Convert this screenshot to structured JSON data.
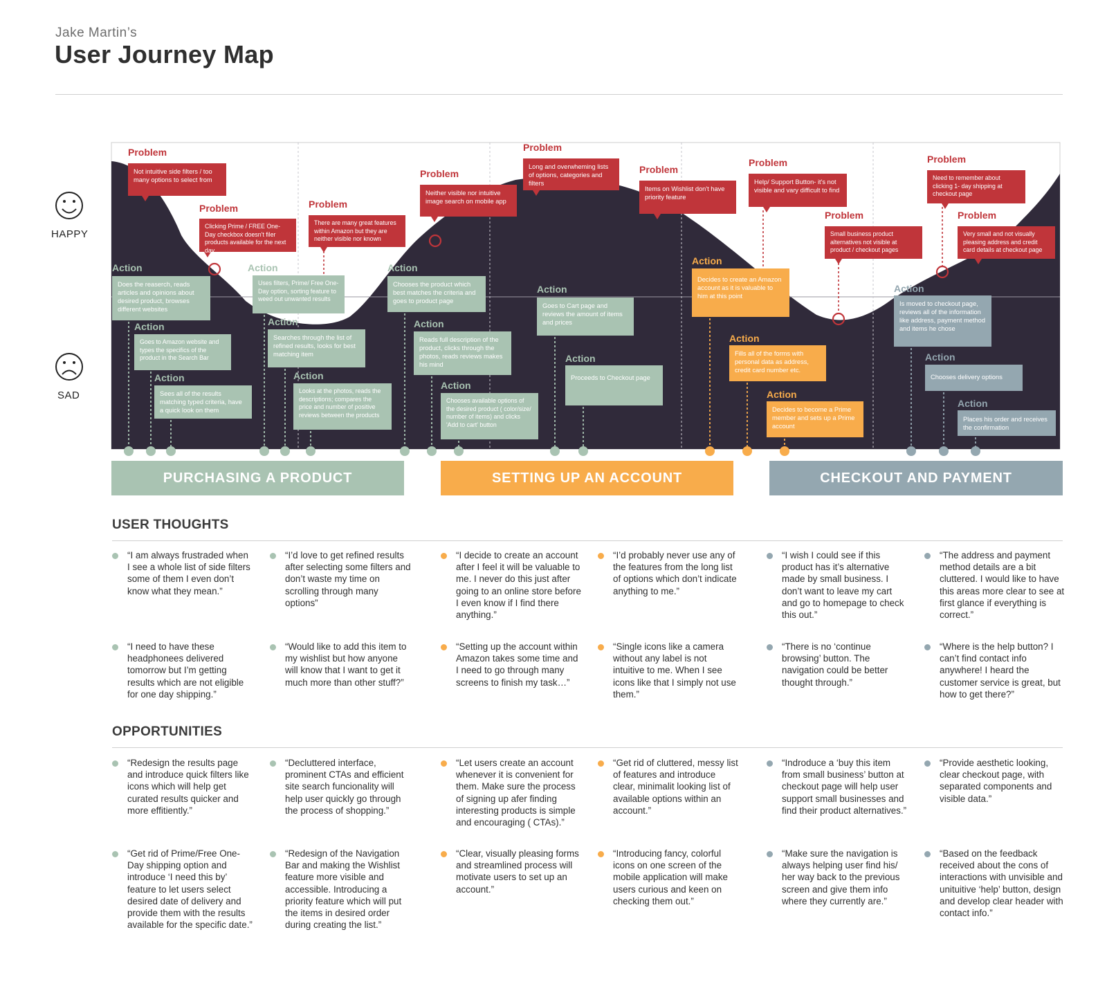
{
  "header": {
    "subtitle": "Jake Martin’s",
    "title": "User Journey Map"
  },
  "moods": {
    "happy": "HAPPY",
    "sad": "SAD"
  },
  "colors": {
    "curve": "#302a3a",
    "problem": "#c0353a",
    "green": "#a9c3b2",
    "orange": "#f8ac4b",
    "grey": "#94a7b0"
  },
  "problems": [
    {
      "label": "Problem",
      "text": "Not intuitive side filters / too many options to select from"
    },
    {
      "label": "Problem",
      "text": "Clicking Prime / FREE One-Day checkbox doesn't filer products available for the next day"
    },
    {
      "label": "Problem",
      "text": "There are many great features within Amazon but they are neither visible nor known"
    },
    {
      "label": "Problem",
      "text": "Neither visible nor intuitive image search on mobile app"
    },
    {
      "label": "Problem",
      "text": "Long and overwheming lists of options, categories and filters"
    },
    {
      "label": "Problem",
      "text": "Items on Wishlist don't have priority feature"
    },
    {
      "label": "Problem",
      "text": "Help/ Support Button- it's not visible and vary difficult to find"
    },
    {
      "label": "Problem",
      "text": "Small business product alternatives not visible at product / checkout pages"
    },
    {
      "label": "Problem",
      "text": "Need to remember about clicking 1- day shipping at checkout page"
    },
    {
      "label": "Problem",
      "text": "Very small and not visually pleasing address and credit card details at checkout page"
    }
  ],
  "actions": [
    {
      "label": "Action",
      "text": "Does the reaserch, reads articles and opinions about desired product, browses different websites"
    },
    {
      "label": "Action",
      "text": "Goes to Amazon website and types the specifics of the product in the Search Bar"
    },
    {
      "label": "Action",
      "text": "Sees all of the results matching typed criteria, have a quick look on them"
    },
    {
      "label": "Action",
      "text": "Uses filters, Prime/ Free One-Day option, sorting feature to weed out unwanted results"
    },
    {
      "label": "Action",
      "text": "Searches through the list of refined results, looks for best matching item"
    },
    {
      "label": "Action",
      "text": "Looks at the photos, reads the descriptions; compares the price and number of positive reviews between the products"
    },
    {
      "label": "Action",
      "text": "Chooses the product which best matches the criteria and goes to product page"
    },
    {
      "label": "Action",
      "text": "Reads full description of the product, clicks through the photos, reads reviews makes his mind"
    },
    {
      "label": "Action",
      "text": "Chooses available options of the desired product ( color/size/ number of items) and clicks 'Add to cart' button"
    },
    {
      "label": "Action",
      "text": "Goes to Cart page and reviews the amount of items and prices"
    },
    {
      "label": "Action",
      "text": "Proceeds to Checkout page"
    },
    {
      "label": "Action",
      "text": "Decides to create an Amazon account as it is valuable to him at this point"
    },
    {
      "label": "Action",
      "text": "Fills all of the forms with personal data as address, credit card number etc."
    },
    {
      "label": "Action",
      "text": "Decides to become a Prime member and sets up a Prime account"
    },
    {
      "label": "Action",
      "text": "Is moved to checkout page, reviews all of the information like address, payment method and items he chose"
    },
    {
      "label": "Action",
      "text": "Chooses delivery options"
    },
    {
      "label": "Action",
      "text": "Places his order and receives the confirmation"
    }
  ],
  "phases": [
    "PURCHASING A PRODUCT",
    "SETTING UP AN ACCOUNT",
    "CHECKOUT AND PAYMENT"
  ],
  "thoughts": {
    "title": "USER THOUGHTS",
    "items": [
      "“I am always frustraded when I see a whole list of side filters some of them I even don’t know what they mean.”",
      "“I’d love to get refined results after selecting some filters and don’t waste my time on scrolling through many options”",
      "“I decide to create an account after I feel it will be valuable to me. I never do this just after going to an online store before I even know if I find there anything.”",
      "“I’d probably never use any of the features from the long list of options which don’t indicate anything to me.”",
      "“I wish I could see if this product has it’s alternative made by small business. I don’t want to leave my cart and go to homepage to check this out.”",
      "“The address and payment method details are a bit cluttered. I would like to have this areas more clear to see at first glance if everything is correct.”",
      "“I need to have these headphonees delivered tomorrow but I’m getting results which are not eligible for one day shipping.”",
      "“Would like to add this item to my wishlist but how anyone will know that I want to get it much more than other stuff?”",
      "“Setting up the account within Amazon takes some time and I need to go through many screens to finish my task…”",
      "“Single icons like a camera without any label is not intuitive to me. When I see icons like that I simply not use them.”",
      "“There is no ‘continue browsing’ button. The navigation could be better thought through.”",
      "“Where is the help button? I can’t find contact info anywhere! I heard the customer service is great, but how to get there?”"
    ]
  },
  "opportunities": {
    "title": "OPPORTUNITIES",
    "items": [
      "“Redesign the results page and introduce quick filters like icons which will help get curated results quicker and more effitiently.”",
      "“Decluttered interface, prominent CTAs  and efficient site search funcionality will help user quickly go through the process of shopping.”",
      "“Let users create an account whenever it is convenient for them. Make sure the process of signing up afer finding interesting products is simple and encouraging ( CTAs).”",
      "“Get rid of cluttered, messy list of features and introduce clear, minimalit looking list of available options within an account.”",
      "“Indroduce a ‘buy this item from small business’ button at checkout page will help user support small businesses and find their product alternatives.”",
      "“Provide aesthetic looking, clear checkout page, with separated components and visible data.”",
      "“Get rid of Prime/Free One-Day shipping option and introduce ‘I need this by’ feature to let users select desired date of delivery and provide them with the results available for the specific date.”",
      "“Redesign of the Navigation Bar and making the Wishlist feature more visible and accessible. Introducing a priority feature which will put the items in desired order during creating the list.”",
      "“Clear, visually pleasing forms and streamlined process will motivate users to set up an account.”",
      "“Introducing fancy, colorful icons on one screen of the mobile application will make users curious and keen on checking them out.”",
      "“Make sure the navigation is always helping user find his/ her way back to the previous screen and give them info where they currently are.”",
      "“Based on the feedback received about the cons of interactions with unvisible and unituitive ‘help’ button, design and develop clear header with contact info.”"
    ]
  }
}
